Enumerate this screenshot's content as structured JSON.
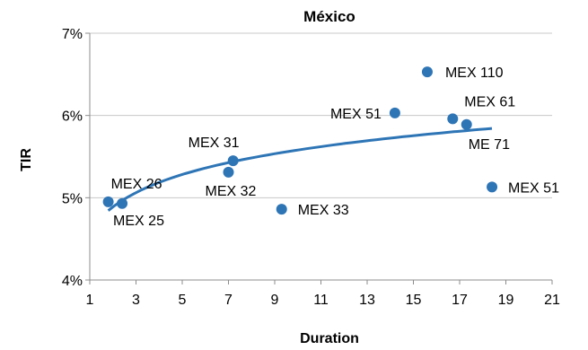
{
  "chart_data": {
    "type": "scatter",
    "title": "México",
    "xlabel": "Duration",
    "ylabel": "TIR",
    "xlim": [
      1,
      21
    ],
    "ylim": [
      4,
      7
    ],
    "x_ticks": [
      1,
      3,
      5,
      7,
      9,
      11,
      13,
      15,
      17,
      19,
      21
    ],
    "x_tick_labels": [
      "1",
      "3",
      "5",
      "7",
      "9",
      "11",
      "13",
      "15",
      "17",
      "19",
      "21"
    ],
    "y_ticks": [
      4,
      5,
      6,
      7
    ],
    "y_tick_labels": [
      "4%",
      "5%",
      "6%",
      "7%"
    ],
    "grid": "horizontal",
    "legend": "none",
    "colors": {
      "point": "#2e75b6",
      "trend": "#2e75b6"
    },
    "points": [
      {
        "label": "MEX 26",
        "x": 1.8,
        "y": 4.95
      },
      {
        "label": "MEX 25",
        "x": 2.4,
        "y": 4.93
      },
      {
        "label": "MEX 31",
        "x": 7.2,
        "y": 5.45
      },
      {
        "label": "MEX 32",
        "x": 7.0,
        "y": 5.31
      },
      {
        "label": "MEX 33",
        "x": 9.3,
        "y": 4.86
      },
      {
        "label": "MEX 51",
        "x": 14.2,
        "y": 6.03
      },
      {
        "label": "MEX 110",
        "x": 15.6,
        "y": 6.53
      },
      {
        "label": "MEX 61",
        "x": 16.7,
        "y": 5.96
      },
      {
        "label": "ME 71",
        "x": 17.3,
        "y": 5.89
      },
      {
        "label": "MEX 51",
        "x": 18.4,
        "y": 5.13
      }
    ],
    "trendline": {
      "type": "logarithmic",
      "a": 4.59,
      "b": 0.43,
      "x_range": [
        1.8,
        18.4
      ]
    }
  }
}
